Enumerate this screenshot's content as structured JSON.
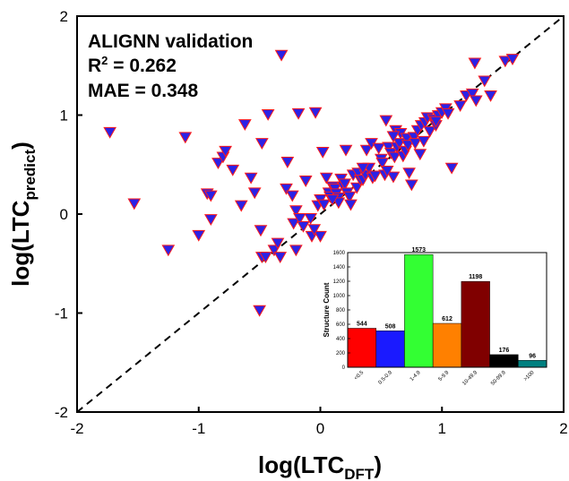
{
  "chart_data": [
    {
      "type": "scatter",
      "title": "",
      "annotations": [
        "ALIGNN validation",
        "R",
        "2",
        " = 0.262",
        "MAE = 0.348"
      ],
      "xlabel": {
        "main": "log(LTC",
        "sub": "DFT",
        "close": ")"
      },
      "ylabel": {
        "main": "log(LTC",
        "sub": "predict",
        "close": ")"
      },
      "xlim": [
        -2,
        2
      ],
      "ylim": [
        -2,
        2
      ],
      "x_ticks": [
        "-2",
        "-1",
        "0",
        "1",
        "2"
      ],
      "y_ticks": [
        "-2",
        "-1",
        "0",
        "1",
        "2"
      ],
      "x_tick_values": [
        -2,
        -1,
        0,
        1,
        2
      ],
      "y_tick_values": [
        -2,
        -1,
        0,
        1,
        2
      ],
      "marker": "triangle-down",
      "marker_fill": "#2b22e6",
      "marker_edge": "#ff1a1a",
      "reference_line": {
        "style": "dashed",
        "from": [
          -2,
          -2
        ],
        "to": [
          2,
          2
        ]
      },
      "points": [
        [
          -1.73,
          0.83
        ],
        [
          -1.53,
          0.11
        ],
        [
          -1.25,
          -0.36
        ],
        [
          -1.11,
          0.78
        ],
        [
          -1.0,
          -0.21
        ],
        [
          -0.93,
          0.21
        ],
        [
          -0.9,
          0.19
        ],
        [
          -0.9,
          -0.05
        ],
        [
          -0.84,
          0.52
        ],
        [
          -0.8,
          0.58
        ],
        [
          -0.78,
          0.64
        ],
        [
          -0.72,
          0.45
        ],
        [
          -0.65,
          0.09
        ],
        [
          -0.62,
          0.91
        ],
        [
          -0.57,
          0.37
        ],
        [
          -0.54,
          0.22
        ],
        [
          -0.49,
          -0.16
        ],
        [
          -0.48,
          0.72
        ],
        [
          -0.43,
          1.01
        ],
        [
          -0.5,
          -0.97
        ],
        [
          -0.48,
          -0.43
        ],
        [
          -0.45,
          -0.43
        ],
        [
          -0.38,
          -0.36
        ],
        [
          -0.35,
          -0.29
        ],
        [
          -0.33,
          -0.43
        ],
        [
          -0.32,
          1.61
        ],
        [
          -0.28,
          0.26
        ],
        [
          -0.27,
          0.53
        ],
        [
          -0.23,
          0.19
        ],
        [
          -0.22,
          -0.09
        ],
        [
          -0.2,
          -0.36
        ],
        [
          -0.2,
          0.04
        ],
        [
          -0.18,
          1.02
        ],
        [
          -0.17,
          -0.04
        ],
        [
          -0.14,
          -0.12
        ],
        [
          -0.12,
          0.34
        ],
        [
          -0.08,
          -0.04
        ],
        [
          -0.07,
          -0.22
        ],
        [
          -0.04,
          1.03
        ],
        [
          -0.02,
          0.09
        ],
        [
          0.0,
          -0.22
        ],
        [
          0.02,
          0.63
        ],
        [
          0.0,
          0.15
        ],
        [
          0.03,
          0.1
        ],
        [
          0.05,
          0.37
        ],
        [
          0.07,
          0.22
        ],
        [
          0.08,
          0.18
        ],
        [
          0.1,
          0.28
        ],
        [
          0.12,
          0.26
        ],
        [
          0.13,
          0.21
        ],
        [
          0.15,
          0.17
        ],
        [
          0.15,
          0.12
        ],
        [
          0.17,
          0.36
        ],
        [
          0.19,
          0.28
        ],
        [
          0.2,
          0.31
        ],
        [
          0.21,
          0.65
        ],
        [
          0.22,
          0.22
        ],
        [
          0.24,
          0.18
        ],
        [
          0.25,
          0.1
        ],
        [
          0.27,
          0.4
        ],
        [
          0.3,
          0.27
        ],
        [
          0.31,
          0.42
        ],
        [
          0.33,
          0.35
        ],
        [
          0.35,
          0.35
        ],
        [
          0.37,
          0.4
        ],
        [
          0.38,
          0.65
        ],
        [
          0.4,
          0.47
        ],
        [
          0.42,
          0.72
        ],
        [
          0.43,
          0.37
        ],
        [
          0.45,
          0.39
        ],
        [
          0.48,
          0.67
        ],
        [
          0.5,
          0.56
        ],
        [
          0.51,
          0.52
        ],
        [
          0.53,
          0.4
        ],
        [
          0.54,
          0.95
        ],
        [
          0.56,
          0.68
        ],
        [
          0.58,
          0.62
        ],
        [
          0.6,
          0.38
        ],
        [
          0.61,
          0.58
        ],
        [
          0.62,
          0.85
        ],
        [
          0.63,
          0.68
        ],
        [
          0.65,
          0.72
        ],
        [
          0.66,
          0.82
        ],
        [
          0.68,
          0.59
        ],
        [
          0.7,
          0.64
        ],
        [
          0.71,
          0.77
        ],
        [
          0.72,
          0.7
        ],
        [
          0.73,
          0.42
        ],
        [
          0.75,
          0.3
        ],
        [
          0.77,
          0.78
        ],
        [
          0.78,
          0.72
        ],
        [
          0.8,
          0.85
        ],
        [
          0.82,
          0.61
        ],
        [
          0.83,
          0.9
        ],
        [
          0.85,
          0.74
        ],
        [
          0.86,
          0.93
        ],
        [
          0.88,
          0.98
        ],
        [
          0.9,
          0.84
        ],
        [
          0.93,
          0.96
        ],
        [
          0.95,
          0.9
        ],
        [
          0.97,
          1.0
        ],
        [
          1.0,
          1.03
        ],
        [
          1.03,
          1.07
        ],
        [
          1.05,
          1.02
        ],
        [
          1.08,
          0.47
        ],
        [
          1.15,
          1.1
        ],
        [
          1.2,
          1.2
        ],
        [
          1.25,
          1.22
        ],
        [
          1.28,
          1.15
        ],
        [
          1.27,
          1.53
        ],
        [
          1.35,
          1.35
        ],
        [
          1.4,
          1.2
        ],
        [
          1.52,
          1.55
        ],
        [
          1.58,
          1.57
        ],
        [
          0.95,
          0.94
        ],
        [
          0.55,
          0.44
        ],
        [
          0.1,
          0.15
        ],
        [
          -0.05,
          -0.15
        ],
        [
          0.35,
          0.47
        ],
        [
          0.6,
          0.79
        ]
      ]
    },
    {
      "type": "bar",
      "role": "inset",
      "ylabel": "Structure Count",
      "ylim": [
        0,
        1600
      ],
      "y_ticks": [
        "0",
        "200",
        "400",
        "600",
        "800",
        "1000",
        "1200",
        "1400",
        "1600"
      ],
      "y_tick_values": [
        0,
        200,
        400,
        600,
        800,
        1000,
        1200,
        1400,
        1600
      ],
      "categories": [
        "<0.5",
        "0.5-0.9",
        "1-4.9",
        "5-9.9",
        "10-49.9",
        "50-99.9",
        ">100"
      ],
      "values": [
        544,
        508,
        1573,
        612,
        1198,
        176,
        96
      ],
      "colors": [
        "#ff0000",
        "#1a1aff",
        "#33ff33",
        "#ff8000",
        "#800000",
        "#000000",
        "#008080"
      ]
    }
  ]
}
